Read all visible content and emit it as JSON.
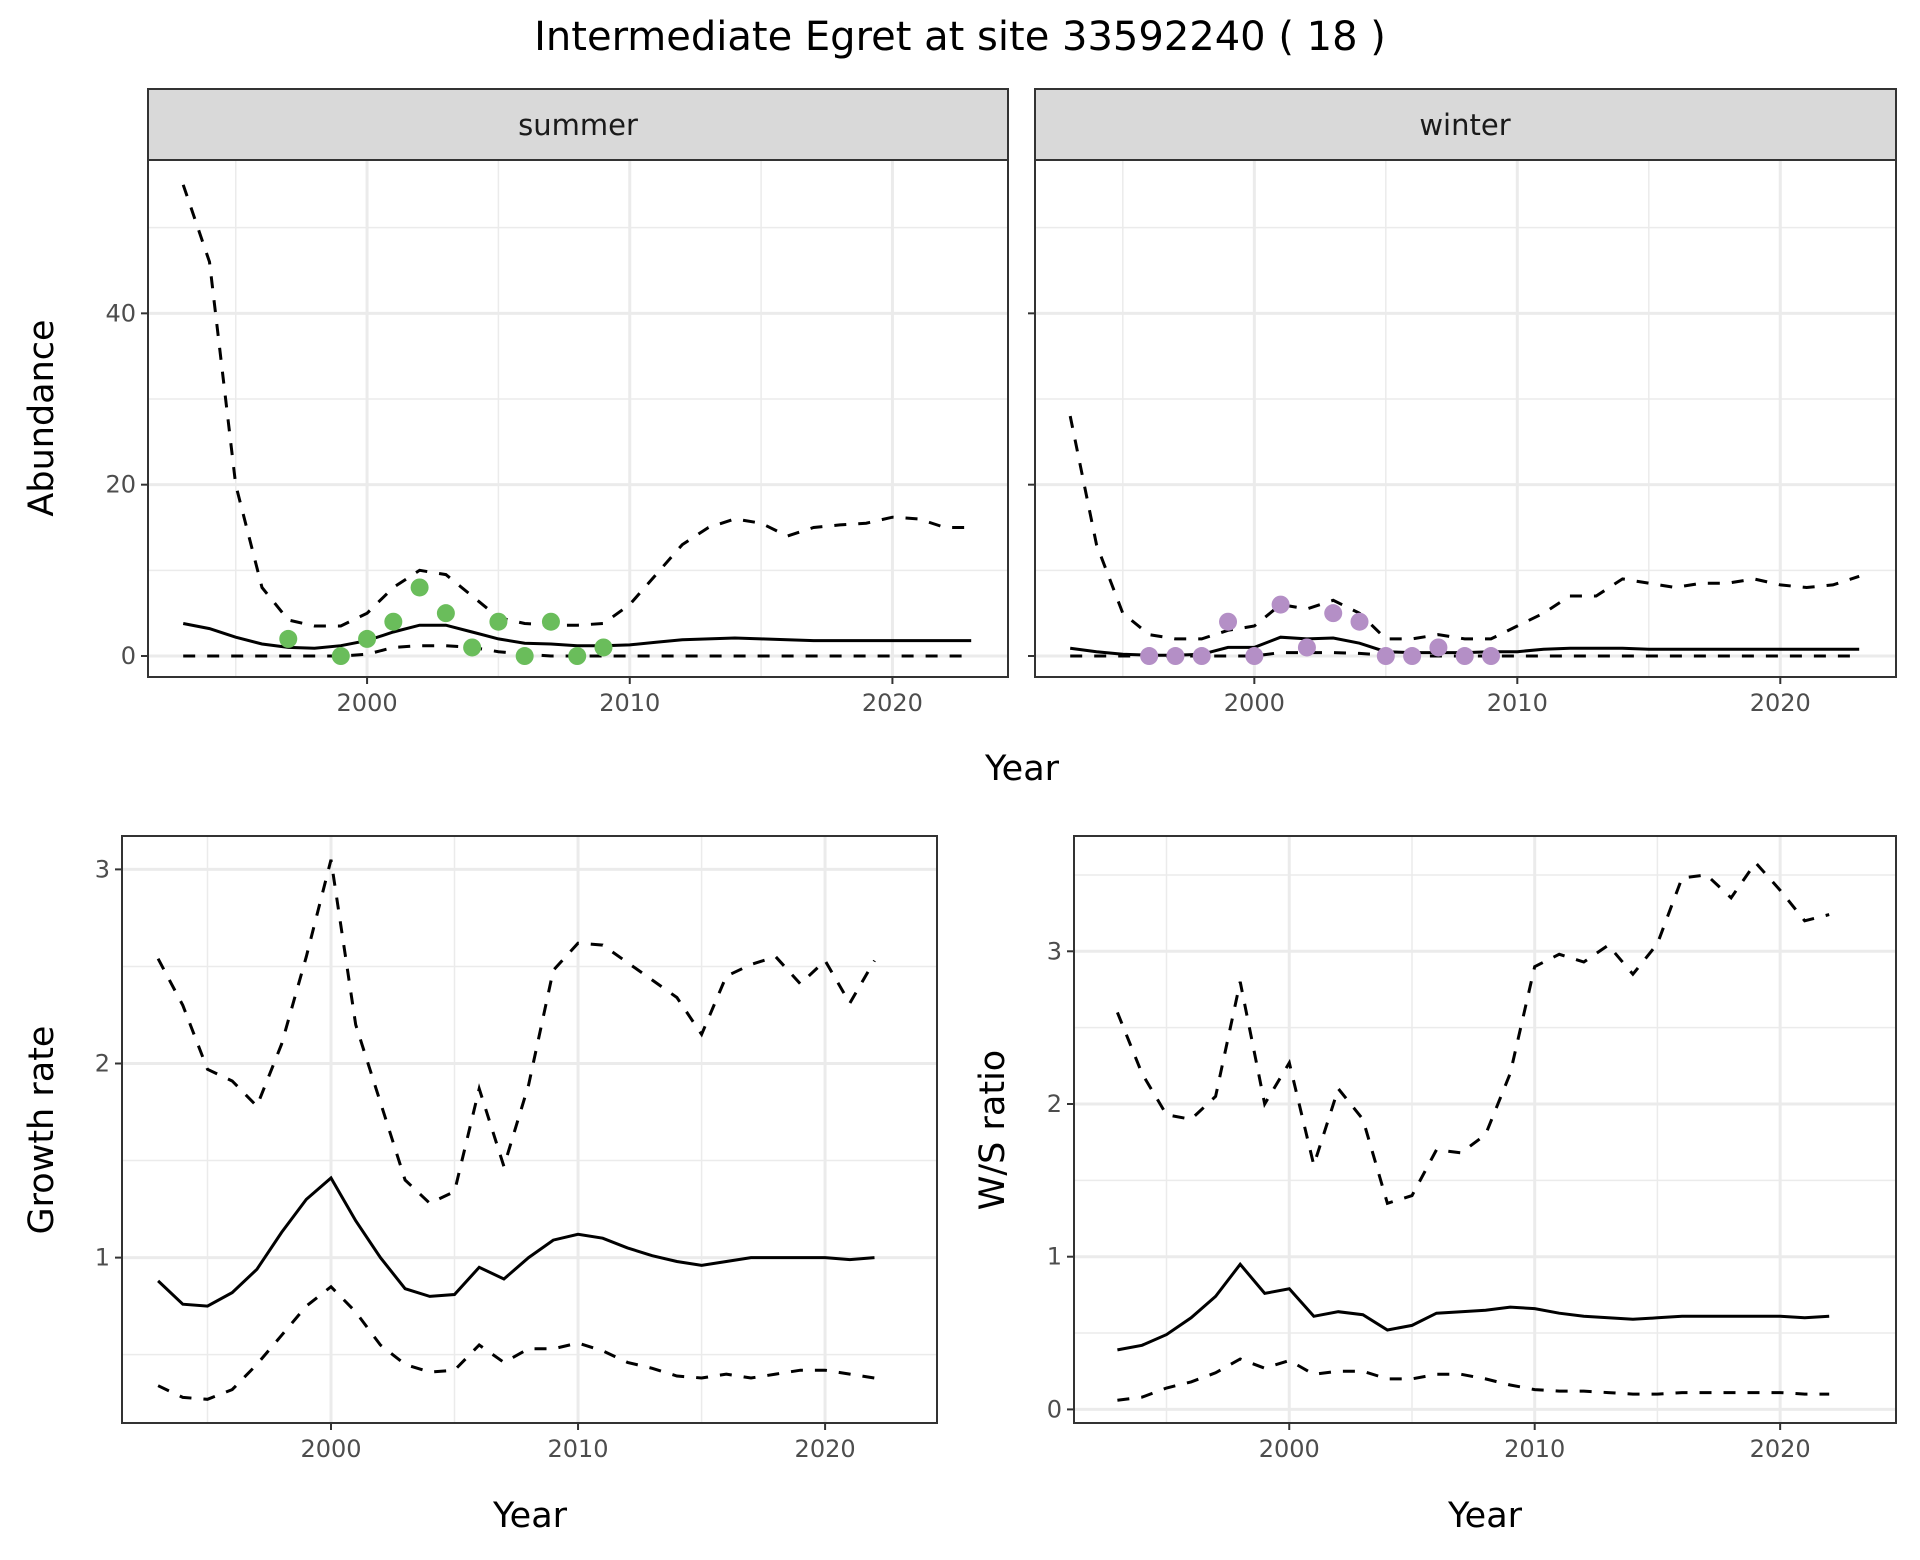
{
  "title": "Intermediate Egret at site 33592240 ( 18 )",
  "colors": {
    "summer_points": "#6abd5b",
    "winter_points": "#b48fc6",
    "lines": "#000000",
    "strip_bg": "#d9d9d9",
    "grid": "#ebebeb"
  },
  "chart_data": [
    {
      "type": "line",
      "facet": "summer",
      "xlabel": "Year",
      "ylabel": "Abundance",
      "xlim": [
        1991.66,
        2024.4
      ],
      "ylim": [
        -2.45,
        57.9
      ],
      "xticks": [
        2000,
        2010,
        2020
      ],
      "yticks": [
        0,
        20,
        40
      ],
      "grid": true,
      "years": [
        1993,
        1994,
        1995,
        1996,
        1997,
        1998,
        1999,
        2000,
        2001,
        2002,
        2003,
        2004,
        2005,
        2006,
        2007,
        2008,
        2009,
        2010,
        2011,
        2012,
        2013,
        2014,
        2015,
        2016,
        2017,
        2018,
        2019,
        2020,
        2021,
        2022,
        2023
      ],
      "mean": [
        3.8,
        3.2,
        2.2,
        1.4,
        1.0,
        0.9,
        1.2,
        1.8,
        2.8,
        3.6,
        3.6,
        2.8,
        2.0,
        1.5,
        1.4,
        1.2,
        1.2,
        1.3,
        1.6,
        1.9,
        2.0,
        2.1,
        2.0,
        1.9,
        1.8,
        1.8,
        1.8,
        1.8,
        1.8,
        1.8,
        1.8
      ],
      "upper": [
        55,
        46,
        20,
        8,
        4.2,
        3.5,
        3.5,
        5,
        8,
        10,
        9.5,
        7,
        4.5,
        3.8,
        3.6,
        3.6,
        3.8,
        6,
        9.5,
        13,
        15,
        16,
        15.5,
        14,
        15,
        15.3,
        15.5,
        16.2,
        16,
        15,
        15
      ],
      "lower": [
        0,
        0,
        0,
        0,
        0,
        0,
        0,
        0.2,
        1.0,
        1.2,
        1.2,
        1.0,
        0.5,
        0.2,
        0,
        0,
        0,
        0,
        0,
        0,
        0,
        0,
        0,
        0,
        0,
        0,
        0,
        0,
        0,
        0,
        0
      ],
      "points": {
        "x": [
          1997,
          1999,
          2000,
          2001,
          2002,
          2003,
          2004,
          2005,
          2006,
          2007,
          2008,
          2009
        ],
        "y": [
          2,
          0,
          2,
          4,
          8,
          5,
          1,
          4,
          0,
          4,
          0,
          1
        ]
      }
    },
    {
      "type": "line",
      "facet": "winter",
      "xlabel": "Year",
      "ylabel": "Abundance",
      "xlim": [
        1991.66,
        2024.4
      ],
      "ylim": [
        -2.45,
        57.9
      ],
      "xticks": [
        2000,
        2010,
        2020
      ],
      "yticks": [
        0,
        20,
        40
      ],
      "grid": true,
      "years": [
        1993,
        1994,
        1995,
        1996,
        1997,
        1998,
        1999,
        2000,
        2001,
        2002,
        2003,
        2004,
        2005,
        2006,
        2007,
        2008,
        2009,
        2010,
        2011,
        2012,
        2013,
        2014,
        2015,
        2016,
        2017,
        2018,
        2019,
        2020,
        2021,
        2022,
        2023
      ],
      "mean": [
        0.9,
        0.5,
        0.2,
        0.1,
        0.1,
        0.2,
        1.0,
        1.0,
        2.2,
        2.0,
        2.1,
        1.5,
        0.5,
        0.4,
        0.4,
        0.4,
        0.5,
        0.5,
        0.8,
        0.9,
        0.9,
        0.9,
        0.8,
        0.8,
        0.8,
        0.8,
        0.8,
        0.8,
        0.8,
        0.8,
        0.8
      ],
      "upper": [
        28,
        13,
        5,
        2.5,
        2,
        2,
        3,
        3.5,
        6,
        5.5,
        6.5,
        5,
        2,
        2,
        2.5,
        2,
        2,
        3.5,
        5,
        7,
        7,
        9,
        8.5,
        8,
        8.5,
        8.5,
        9,
        8.3,
        8,
        8.3,
        9.3
      ],
      "lower": [
        0,
        0,
        0,
        0,
        0,
        0,
        0,
        0,
        0.4,
        0.4,
        0.4,
        0.3,
        0.1,
        0,
        0,
        0,
        0,
        0,
        0,
        0,
        0,
        0,
        0,
        0,
        0,
        0,
        0,
        0,
        0,
        0,
        0
      ],
      "points": {
        "x": [
          1996,
          1997,
          1998,
          1999,
          2000,
          2001,
          2002,
          2003,
          2004,
          2005,
          2006,
          2007,
          2008,
          2009
        ],
        "y": [
          0,
          0,
          0,
          4,
          0,
          6,
          1,
          5,
          4,
          0,
          0,
          1,
          0,
          0
        ]
      }
    },
    {
      "type": "line",
      "xlabel": "Year",
      "ylabel": "Growth rate",
      "xlim": [
        1991.54,
        2024.53
      ],
      "ylim": [
        0.148,
        3.172
      ],
      "xticks": [
        2000,
        2010,
        2020
      ],
      "yticks": [
        1,
        2,
        3
      ],
      "grid": true,
      "years": [
        1993,
        1994,
        1995,
        1996,
        1997,
        1998,
        1999,
        2000,
        2001,
        2002,
        2003,
        2004,
        2005,
        2006,
        2007,
        2008,
        2009,
        2010,
        2011,
        2012,
        2013,
        2014,
        2015,
        2016,
        2017,
        2018,
        2019,
        2020,
        2021,
        2022
      ],
      "mean": [
        0.88,
        0.76,
        0.75,
        0.82,
        0.94,
        1.13,
        1.3,
        1.41,
        1.19,
        1.0,
        0.84,
        0.8,
        0.81,
        0.95,
        0.89,
        1.0,
        1.09,
        1.12,
        1.1,
        1.05,
        1.01,
        0.98,
        0.96,
        0.98,
        1.0,
        1.0,
        1.0,
        1.0,
        0.99,
        1.0
      ],
      "upper": [
        2.54,
        2.3,
        1.97,
        1.91,
        1.78,
        2.1,
        2.55,
        3.05,
        2.2,
        1.8,
        1.4,
        1.28,
        1.34,
        1.87,
        1.47,
        1.89,
        2.48,
        2.62,
        2.61,
        2.52,
        2.43,
        2.34,
        2.15,
        2.45,
        2.51,
        2.55,
        2.41,
        2.53,
        2.31,
        2.53
      ],
      "lower": [
        0.34,
        0.28,
        0.27,
        0.32,
        0.45,
        0.6,
        0.75,
        0.85,
        0.72,
        0.55,
        0.45,
        0.41,
        0.42,
        0.55,
        0.46,
        0.53,
        0.53,
        0.56,
        0.52,
        0.46,
        0.43,
        0.39,
        0.38,
        0.4,
        0.38,
        0.4,
        0.42,
        0.42,
        0.4,
        0.38
      ]
    },
    {
      "type": "line",
      "xlabel": "Year",
      "ylabel": "W/S ratio",
      "xlim": [
        1991.23,
        2024.72
      ],
      "ylim": [
        -0.089,
        3.755
      ],
      "xticks": [
        2000,
        2010,
        2020
      ],
      "yticks": [
        0,
        1,
        2,
        3
      ],
      "grid": true,
      "years": [
        1993,
        1994,
        1995,
        1996,
        1997,
        1998,
        1999,
        2000,
        2001,
        2002,
        2003,
        2004,
        2005,
        2006,
        2007,
        2008,
        2009,
        2010,
        2011,
        2012,
        2013,
        2014,
        2015,
        2016,
        2017,
        2018,
        2019,
        2020,
        2021,
        2022
      ],
      "mean": [
        0.39,
        0.42,
        0.49,
        0.6,
        0.74,
        0.95,
        0.76,
        0.79,
        0.61,
        0.64,
        0.62,
        0.52,
        0.55,
        0.63,
        0.64,
        0.65,
        0.67,
        0.66,
        0.63,
        0.61,
        0.6,
        0.59,
        0.6,
        0.61,
        0.61,
        0.61,
        0.61,
        0.61,
        0.6,
        0.61
      ],
      "upper": [
        2.6,
        2.2,
        1.93,
        1.9,
        2.05,
        2.8,
        2.0,
        2.27,
        1.6,
        2.1,
        1.9,
        1.35,
        1.4,
        1.7,
        1.68,
        1.8,
        2.2,
        2.9,
        2.98,
        2.93,
        3.04,
        2.85,
        3.05,
        3.48,
        3.5,
        3.35,
        3.58,
        3.4,
        3.2,
        3.24
      ],
      "lower": [
        0.06,
        0.08,
        0.14,
        0.18,
        0.24,
        0.33,
        0.27,
        0.32,
        0.23,
        0.25,
        0.25,
        0.2,
        0.2,
        0.23,
        0.23,
        0.2,
        0.16,
        0.13,
        0.12,
        0.12,
        0.11,
        0.1,
        0.1,
        0.11,
        0.11,
        0.11,
        0.11,
        0.11,
        0.1,
        0.1
      ]
    }
  ]
}
